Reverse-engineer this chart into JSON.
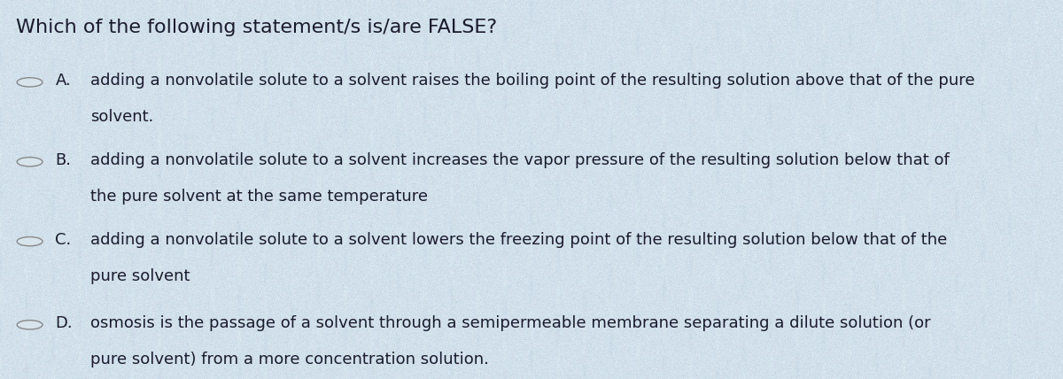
{
  "title": "Which of the following statement/s is/are FALSE?",
  "title_fontsize": 16,
  "title_fontweight": "normal",
  "bg_color_top": "#dce8f0",
  "bg_color": "#c8d8e4",
  "text_color": "#1a1a2e",
  "options": [
    {
      "letter": "A.",
      "line1": "adding a nonvolatile solute to a solvent raises the boiling point of the resulting solution above that of the pure",
      "line2": "solvent."
    },
    {
      "letter": "B.",
      "line1": "adding a nonvolatile solute to a solvent increases the vapor pressure of the resulting solution below that of",
      "line2": "the pure solvent at the same temperature"
    },
    {
      "letter": "C.",
      "line1": "adding a nonvolatile solute to a solvent lowers the freezing point of the resulting solution below that of the",
      "line2": "pure solvent"
    },
    {
      "letter": "D.",
      "line1": "osmosis is the passage of a solvent through a semipermeable membrane separating a dilute solution (or",
      "line2": "pure solvent) from a more concentration solution."
    }
  ],
  "option_fontsize": 13.0,
  "figwidth": 12.0,
  "figheight": 4.28,
  "dpi": 100
}
